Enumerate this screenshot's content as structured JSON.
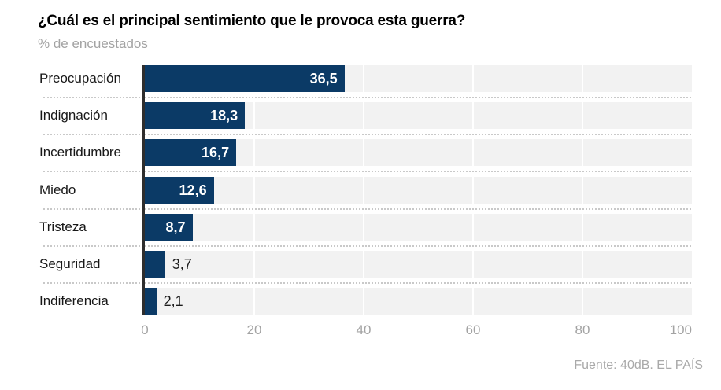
{
  "header": {
    "title": "¿Cuál es el principal sentimiento que le provoca esta guerra?",
    "subtitle": "% de encuestados"
  },
  "chart_data": {
    "type": "bar",
    "orientation": "horizontal",
    "title": "¿Cuál es el principal sentimiento que le provoca esta guerra?",
    "subtitle": "% de encuestados",
    "categories": [
      "Preocupación",
      "Indignación",
      "Incertidumbre",
      "Miedo",
      "Tristeza",
      "Seguridad",
      "Indiferencia"
    ],
    "values": [
      36.5,
      18.3,
      16.7,
      12.6,
      8.7,
      3.7,
      2.1
    ],
    "value_labels": [
      "36,5",
      "18,3",
      "16,7",
      "12,6",
      "8,7",
      "3,7",
      "2,1"
    ],
    "xlim": [
      0,
      100
    ],
    "x_ticks": [
      0,
      20,
      40,
      60,
      80,
      100
    ],
    "grid": "vertical-white-on-gray",
    "legend": "none",
    "bar_color": "#0b3a66",
    "plot_background": "#f2f2f2",
    "inside_label_min_value": 5
  },
  "footer": {
    "source": "Fuente: 40dB. EL PAÍS"
  }
}
